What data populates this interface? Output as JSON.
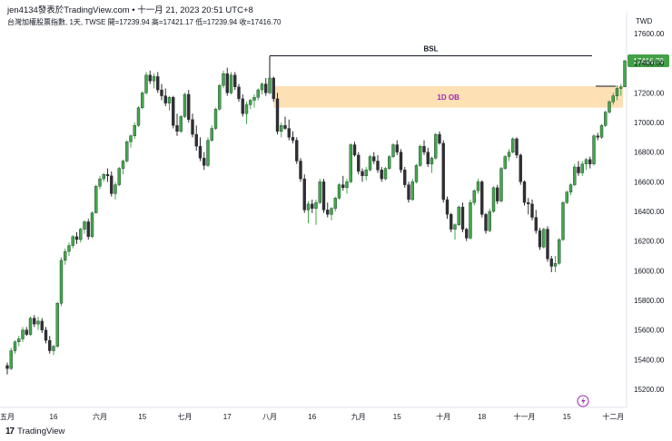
{
  "header": {
    "line1": "jen4134發表於TradingView.com • 十一月 21, 2023 20:51 UTC+8",
    "line2": "台灣加權股票指數, 1天, TWSE  開=17239.94  高=17421.17  低=17239.94  收=17416.70"
  },
  "footer": {
    "logo_mark": "17",
    "logo_text": "TradingView"
  },
  "colors": {
    "up": "#3fa84a",
    "down": "#2e2e33",
    "ob_zone": "#fde0b4",
    "ob_label": "#9c27b0",
    "price_tag": "#43a047"
  },
  "chart_data": {
    "type": "candlestick",
    "currency_label": "TWD",
    "ylim": [
      15100,
      17700
    ],
    "y_ticks": [
      15200,
      15400,
      15600,
      15800,
      16000,
      16200,
      16400,
      16600,
      16800,
      17000,
      17200,
      17400,
      17600
    ],
    "y_tick_labels": [
      "15200.00",
      "15400.00",
      "15600.00",
      "15800.00",
      "16000.00",
      "16200.00",
      "16400.00",
      "16600.00",
      "16800.00",
      "17000.00",
      "17200.00",
      "17400.00",
      "17600.00"
    ],
    "x_tick_labels": [
      {
        "i": 0,
        "label": "五月"
      },
      {
        "i": 12,
        "label": "16"
      },
      {
        "i": 24,
        "label": "六月"
      },
      {
        "i": 35,
        "label": "15"
      },
      {
        "i": 46,
        "label": "七月"
      },
      {
        "i": 57,
        "label": "17"
      },
      {
        "i": 68,
        "label": "八月"
      },
      {
        "i": 79,
        "label": "16"
      },
      {
        "i": 91,
        "label": "九月"
      },
      {
        "i": 101,
        "label": "15"
      },
      {
        "i": 113,
        "label": "十月"
      },
      {
        "i": 123,
        "label": "18"
      },
      {
        "i": 134,
        "label": "十一月"
      },
      {
        "i": 145,
        "label": "15"
      },
      {
        "i": 157,
        "label": "十二月"
      }
    ],
    "ohlc": [
      [
        15360,
        15380,
        15300,
        15340
      ],
      [
        15340,
        15480,
        15330,
        15460
      ],
      [
        15460,
        15530,
        15440,
        15520
      ],
      [
        15520,
        15560,
        15490,
        15540
      ],
      [
        15540,
        15620,
        15520,
        15600
      ],
      [
        15600,
        15620,
        15560,
        15570
      ],
      [
        15570,
        15690,
        15560,
        15680
      ],
      [
        15680,
        15700,
        15620,
        15640
      ],
      [
        15640,
        15690,
        15600,
        15660
      ],
      [
        15660,
        15680,
        15580,
        15600
      ],
      [
        15600,
        15620,
        15510,
        15530
      ],
      [
        15530,
        15560,
        15440,
        15460
      ],
      [
        15460,
        15500,
        15430,
        15490
      ],
      [
        15490,
        15790,
        15480,
        15780
      ],
      [
        15780,
        16090,
        15760,
        16070
      ],
      [
        16070,
        16150,
        16040,
        16130
      ],
      [
        16130,
        16190,
        16100,
        16170
      ],
      [
        16170,
        16240,
        16150,
        16230
      ],
      [
        16230,
        16260,
        16180,
        16210
      ],
      [
        16210,
        16290,
        16190,
        16280
      ],
      [
        16280,
        16340,
        16250,
        16330
      ],
      [
        16330,
        16350,
        16210,
        16230
      ],
      [
        16230,
        16400,
        16220,
        16390
      ],
      [
        16390,
        16580,
        16390,
        16570
      ],
      [
        16570,
        16640,
        16550,
        16620
      ],
      [
        16620,
        16660,
        16600,
        16650
      ],
      [
        16650,
        16690,
        16600,
        16640
      ],
      [
        16640,
        16670,
        16500,
        16520
      ],
      [
        16520,
        16600,
        16480,
        16580
      ],
      [
        16580,
        16700,
        16570,
        16690
      ],
      [
        16690,
        16750,
        16650,
        16740
      ],
      [
        16740,
        16880,
        16730,
        16870
      ],
      [
        16870,
        16920,
        16830,
        16910
      ],
      [
        16910,
        17000,
        16890,
        16980
      ],
      [
        16980,
        17110,
        16970,
        17100
      ],
      [
        17100,
        17210,
        17090,
        17200
      ],
      [
        17200,
        17340,
        17190,
        17320
      ],
      [
        17320,
        17350,
        17260,
        17280
      ],
      [
        17280,
        17330,
        17230,
        17310
      ],
      [
        17310,
        17340,
        17200,
        17220
      ],
      [
        17220,
        17260,
        17150,
        17180
      ],
      [
        17180,
        17230,
        17110,
        17130
      ],
      [
        17130,
        17180,
        17080,
        17170
      ],
      [
        17170,
        17180,
        16960,
        16980
      ],
      [
        16980,
        17060,
        16910,
        16940
      ],
      [
        16940,
        17050,
        16930,
        17040
      ],
      [
        17040,
        17200,
        17030,
        17190
      ],
      [
        17190,
        17220,
        17000,
        17020
      ],
      [
        17020,
        17060,
        16900,
        16920
      ],
      [
        16920,
        16980,
        16810,
        16840
      ],
      [
        16840,
        16900,
        16740,
        16760
      ],
      [
        16760,
        16800,
        16680,
        16710
      ],
      [
        16710,
        16900,
        16700,
        16880
      ],
      [
        16880,
        16980,
        16870,
        16960
      ],
      [
        16960,
        17100,
        16950,
        17090
      ],
      [
        17090,
        17260,
        17080,
        17250
      ],
      [
        17250,
        17350,
        17230,
        17330
      ],
      [
        17330,
        17370,
        17180,
        17200
      ],
      [
        17200,
        17340,
        17190,
        17320
      ],
      [
        17320,
        17340,
        17220,
        17240
      ],
      [
        17240,
        17260,
        17140,
        17160
      ],
      [
        17160,
        17190,
        17040,
        17060
      ],
      [
        17060,
        17140,
        16990,
        17120
      ],
      [
        17120,
        17160,
        17090,
        17150
      ],
      [
        17150,
        17190,
        17100,
        17170
      ],
      [
        17170,
        17230,
        17150,
        17220
      ],
      [
        17220,
        17270,
        17190,
        17260
      ],
      [
        17260,
        17300,
        17180,
        17200
      ],
      [
        17200,
        17310,
        17190,
        17300
      ],
      [
        17300,
        17310,
        17140,
        17160
      ],
      [
        17160,
        17200,
        16920,
        16940
      ],
      [
        16940,
        17000,
        16900,
        16980
      ],
      [
        16980,
        17040,
        16950,
        16960
      ],
      [
        16960,
        17020,
        16880,
        16900
      ],
      [
        16900,
        16940,
        16860,
        16880
      ],
      [
        16880,
        16900,
        16720,
        16740
      ],
      [
        16740,
        16760,
        16600,
        16620
      ],
      [
        16620,
        16650,
        16390,
        16410
      ],
      [
        16410,
        16470,
        16320,
        16450
      ],
      [
        16450,
        16480,
        16390,
        16420
      ],
      [
        16420,
        16480,
        16310,
        16460
      ],
      [
        16460,
        16620,
        16450,
        16600
      ],
      [
        16600,
        16620,
        16390,
        16410
      ],
      [
        16410,
        16460,
        16360,
        16380
      ],
      [
        16380,
        16430,
        16340,
        16420
      ],
      [
        16420,
        16500,
        16400,
        16490
      ],
      [
        16490,
        16590,
        16480,
        16580
      ],
      [
        16580,
        16640,
        16540,
        16560
      ],
      [
        16560,
        16620,
        16520,
        16600
      ],
      [
        16600,
        16860,
        16590,
        16850
      ],
      [
        16850,
        16870,
        16770,
        16780
      ],
      [
        16780,
        16800,
        16650,
        16670
      ],
      [
        16670,
        16690,
        16600,
        16640
      ],
      [
        16640,
        16700,
        16610,
        16680
      ],
      [
        16680,
        16780,
        16670,
        16770
      ],
      [
        16770,
        16800,
        16720,
        16740
      ],
      [
        16740,
        16780,
        16660,
        16680
      ],
      [
        16680,
        16700,
        16600,
        16620
      ],
      [
        16620,
        16700,
        16610,
        16690
      ],
      [
        16690,
        16780,
        16680,
        16770
      ],
      [
        16770,
        16860,
        16760,
        16850
      ],
      [
        16850,
        16880,
        16780,
        16800
      ],
      [
        16800,
        16820,
        16660,
        16680
      ],
      [
        16680,
        16700,
        16560,
        16580
      ],
      [
        16580,
        16600,
        16460,
        16480
      ],
      [
        16480,
        16620,
        16470,
        16600
      ],
      [
        16600,
        16720,
        16590,
        16710
      ],
      [
        16710,
        16850,
        16700,
        16840
      ],
      [
        16840,
        16880,
        16780,
        16800
      ],
      [
        16800,
        16830,
        16700,
        16720
      ],
      [
        16720,
        16770,
        16660,
        16760
      ],
      [
        16760,
        16930,
        16750,
        16920
      ],
      [
        16920,
        16940,
        16850,
        16860
      ],
      [
        16860,
        16880,
        16460,
        16480
      ],
      [
        16480,
        16500,
        16350,
        16380
      ],
      [
        16380,
        16390,
        16260,
        16280
      ],
      [
        16280,
        16320,
        16210,
        16310
      ],
      [
        16310,
        16440,
        16300,
        16430
      ],
      [
        16430,
        16460,
        16260,
        16280
      ],
      [
        16280,
        16290,
        16200,
        16220
      ],
      [
        16220,
        16480,
        16210,
        16460
      ],
      [
        16460,
        16550,
        16440,
        16540
      ],
      [
        16540,
        16620,
        16520,
        16600
      ],
      [
        16600,
        16610,
        16360,
        16380
      ],
      [
        16380,
        16390,
        16250,
        16270
      ],
      [
        16270,
        16420,
        16260,
        16400
      ],
      [
        16400,
        16570,
        16390,
        16560
      ],
      [
        16560,
        16580,
        16450,
        16470
      ],
      [
        16470,
        16700,
        16460,
        16690
      ],
      [
        16690,
        16780,
        16680,
        16770
      ],
      [
        16770,
        16820,
        16740,
        16800
      ],
      [
        16800,
        16900,
        16790,
        16890
      ],
      [
        16890,
        16900,
        16760,
        16780
      ],
      [
        16780,
        16790,
        16580,
        16600
      ],
      [
        16600,
        16610,
        16440,
        16460
      ],
      [
        16460,
        16490,
        16380,
        16450
      ],
      [
        16450,
        16480,
        16340,
        16360
      ],
      [
        16360,
        16410,
        16250,
        16270
      ],
      [
        16270,
        16290,
        16140,
        16160
      ],
      [
        16160,
        16290,
        16150,
        16280
      ],
      [
        16280,
        16300,
        16060,
        16080
      ],
      [
        16080,
        16100,
        15990,
        16030
      ],
      [
        16030,
        16100,
        15990,
        16050
      ],
      [
        16050,
        16220,
        16040,
        16210
      ],
      [
        16210,
        16470,
        16200,
        16460
      ],
      [
        16460,
        16540,
        16450,
        16530
      ],
      [
        16530,
        16590,
        16510,
        16580
      ],
      [
        16580,
        16720,
        16570,
        16700
      ],
      [
        16700,
        16740,
        16640,
        16660
      ],
      [
        16660,
        16740,
        16640,
        16720
      ],
      [
        16720,
        16760,
        16680,
        16750
      ],
      [
        16750,
        16770,
        16690,
        16720
      ],
      [
        16720,
        16920,
        16710,
        16910
      ],
      [
        16910,
        16930,
        16880,
        16900
      ],
      [
        16900,
        16990,
        16890,
        16980
      ],
      [
        16980,
        17080,
        16970,
        17070
      ],
      [
        17070,
        17150,
        17060,
        17140
      ],
      [
        17140,
        17200,
        17120,
        17180
      ],
      [
        17180,
        17250,
        17150,
        17230
      ],
      [
        17230,
        17260,
        17180,
        17240
      ],
      [
        17239.94,
        17421.17,
        17239.94,
        17416.7
      ]
    ],
    "annotations": {
      "bsl": {
        "label": "BSL",
        "price": 17450
      },
      "order_block": {
        "label": "1D OB",
        "top": 17245,
        "bottom": 17100
      },
      "last_price": {
        "label": "17416.70",
        "value": 17416.7
      }
    }
  }
}
